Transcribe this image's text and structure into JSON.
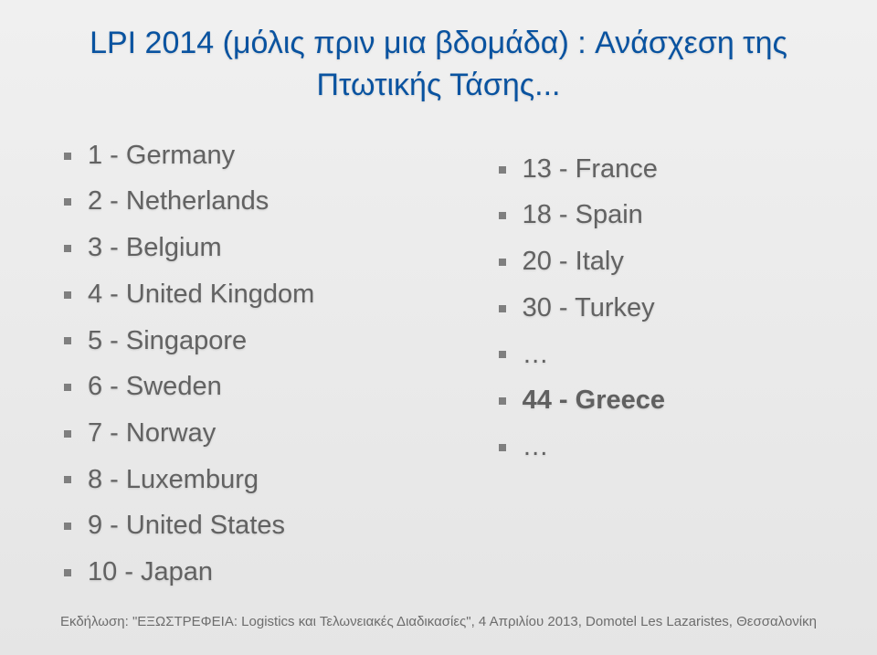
{
  "background": {
    "top": "#f0f0f0",
    "bottom": "#e5e5e5"
  },
  "title": {
    "line1": "LPI 2014 (μόλις πριν μια βδομάδα) : Ανάσχεση της",
    "line2": "Πτωτικής Τάσης...",
    "color": "#0953a0",
    "fontsize": 34
  },
  "leftColumn": [
    {
      "label": "1 - Germany"
    },
    {
      "label": "2 - Netherlands"
    },
    {
      "label": "3 - Belgium"
    },
    {
      "label": "4 - United Kingdom"
    },
    {
      "label": "5 - Singapore"
    },
    {
      "label": "6 - Sweden"
    },
    {
      "label": "7 - Norway"
    },
    {
      "label": "8 - Luxemburg"
    },
    {
      "label": "9 - United States"
    },
    {
      "label": "10 - Japan"
    }
  ],
  "rightColumn": [
    {
      "label": "13 - France",
      "bold": false
    },
    {
      "label": "18 - Spain",
      "bold": false
    },
    {
      "label": "20 - Italy",
      "bold": false
    },
    {
      "label": "30 - Turkey",
      "bold": false
    },
    {
      "label": "…",
      "bold": false
    },
    {
      "label": "44 - Greece",
      "bold": true
    },
    {
      "label": "…",
      "bold": false
    }
  ],
  "bullet": {
    "color": "#7f7f7f",
    "size": 8
  },
  "text": {
    "color": "#626262",
    "fontsize": 29,
    "highlightColor": "#606060"
  },
  "footer": {
    "text": "Εκδήλωση: \"ΕΞΩΣΤΡΕΦΕΙΑ: Logistics και Τελωνειακές Διαδικασίες\", 4 Απριλίου 2013, Domotel Les Lazaristes, Θεσσαλονίκη",
    "color": "#6d6d6d",
    "fontsize": 15
  }
}
